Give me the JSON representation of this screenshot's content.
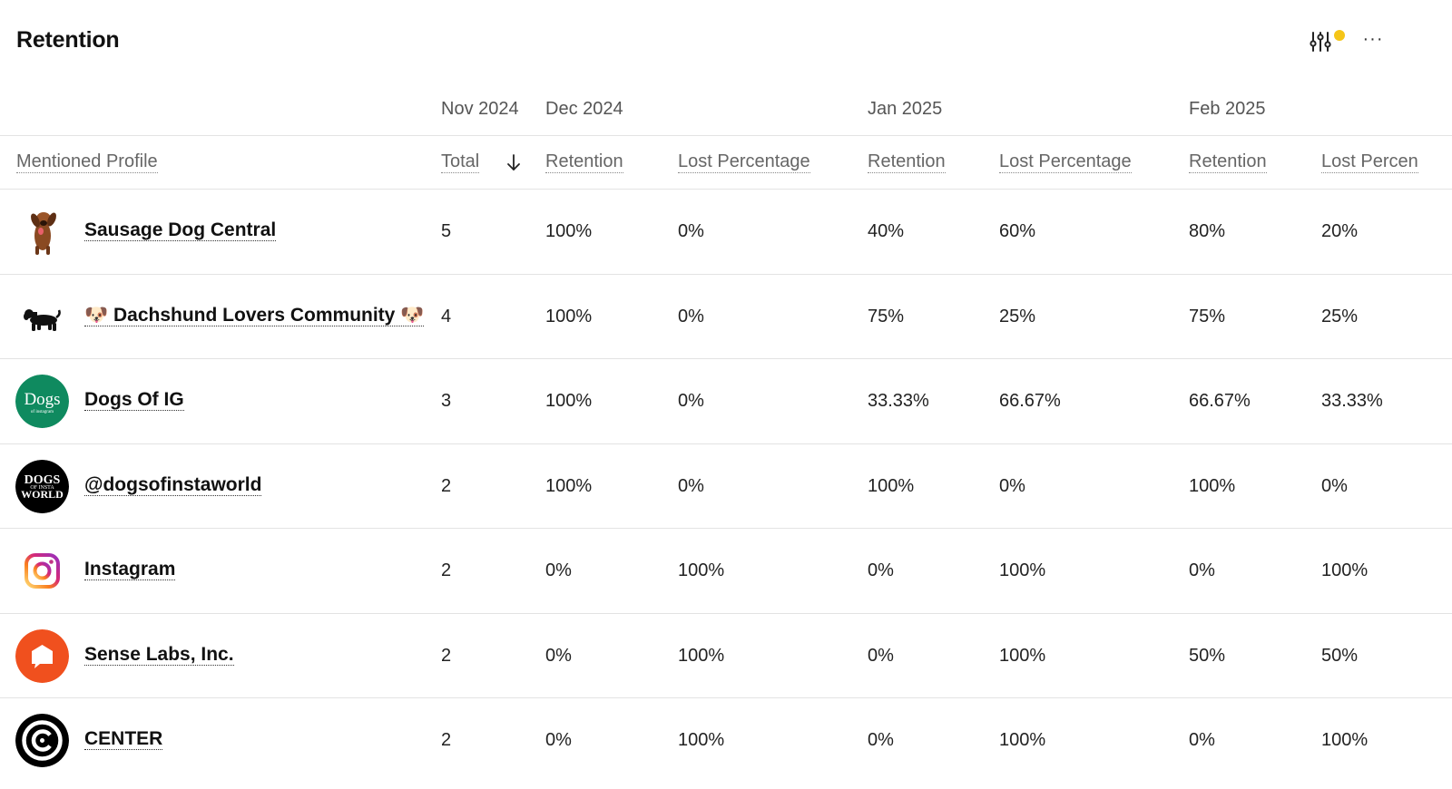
{
  "header": {
    "title": "Retention",
    "more_label": "···",
    "filter_badge_color": "#f5c518"
  },
  "months": [
    "Nov 2024",
    "Dec 2024",
    "Jan 2025",
    "Feb 2025"
  ],
  "columns": {
    "profile": "Mentioned Profile",
    "total": "Total",
    "dec_retention": "Retention",
    "dec_lost": "Lost Percentage",
    "jan_retention": "Retention",
    "jan_lost": "Lost Percentage",
    "feb_retention": "Retention",
    "feb_lost": "Lost Percen"
  },
  "sort": {
    "column": "Total",
    "direction": "descending",
    "icon": "arrow-down-icon"
  },
  "rows": [
    {
      "name": "Sausage Dog Central",
      "avatar": "dachshund-photo-icon",
      "total": "5",
      "dec_retention": "100%",
      "dec_lost": "0%",
      "jan_retention": "40%",
      "jan_lost": "60%",
      "feb_retention": "80%",
      "feb_lost": "20%"
    },
    {
      "name": "🐶 Dachshund Lovers Community 🐶",
      "avatar": "dachshund-silhouette-icon",
      "total": "4",
      "dec_retention": "100%",
      "dec_lost": "0%",
      "jan_retention": "75%",
      "jan_lost": "25%",
      "feb_retention": "75%",
      "feb_lost": "25%"
    },
    {
      "name": "Dogs Of IG",
      "avatar": "dogs-of-ig-logo",
      "avatar_text": "Dogs",
      "avatar_subtext": "of instagram",
      "avatar_color": "#0f8a5f",
      "total": "3",
      "dec_retention": "100%",
      "dec_lost": "0%",
      "jan_retention": "33.33%",
      "jan_lost": "66.67%",
      "feb_retention": "66.67%",
      "feb_lost": "33.33%"
    },
    {
      "name": "@dogsofinstaworld",
      "avatar": "dogs-of-insta-world-logo",
      "avatar_text": "DOGS",
      "avatar_subtext": "OF INSTA",
      "avatar_text2": "WORLD",
      "avatar_color": "#000000",
      "total": "2",
      "dec_retention": "100%",
      "dec_lost": "0%",
      "jan_retention": "100%",
      "jan_lost": "0%",
      "feb_retention": "100%",
      "feb_lost": "0%"
    },
    {
      "name": "Instagram",
      "avatar": "instagram-logo-icon",
      "total": "2",
      "dec_retention": "0%",
      "dec_lost": "100%",
      "jan_retention": "0%",
      "jan_lost": "100%",
      "feb_retention": "0%",
      "feb_lost": "100%"
    },
    {
      "name": "Sense Labs, Inc.",
      "avatar": "sense-labs-logo-icon",
      "avatar_color": "#f0501e",
      "total": "2",
      "dec_retention": "0%",
      "dec_lost": "100%",
      "jan_retention": "0%",
      "jan_lost": "100%",
      "feb_retention": "50%",
      "feb_lost": "50%"
    },
    {
      "name": "CENTER",
      "avatar": "center-logo-icon",
      "avatar_color": "#000000",
      "total": "2",
      "dec_retention": "0%",
      "dec_lost": "100%",
      "jan_retention": "0%",
      "jan_lost": "100%",
      "feb_retention": "0%",
      "feb_lost": "100%"
    }
  ]
}
